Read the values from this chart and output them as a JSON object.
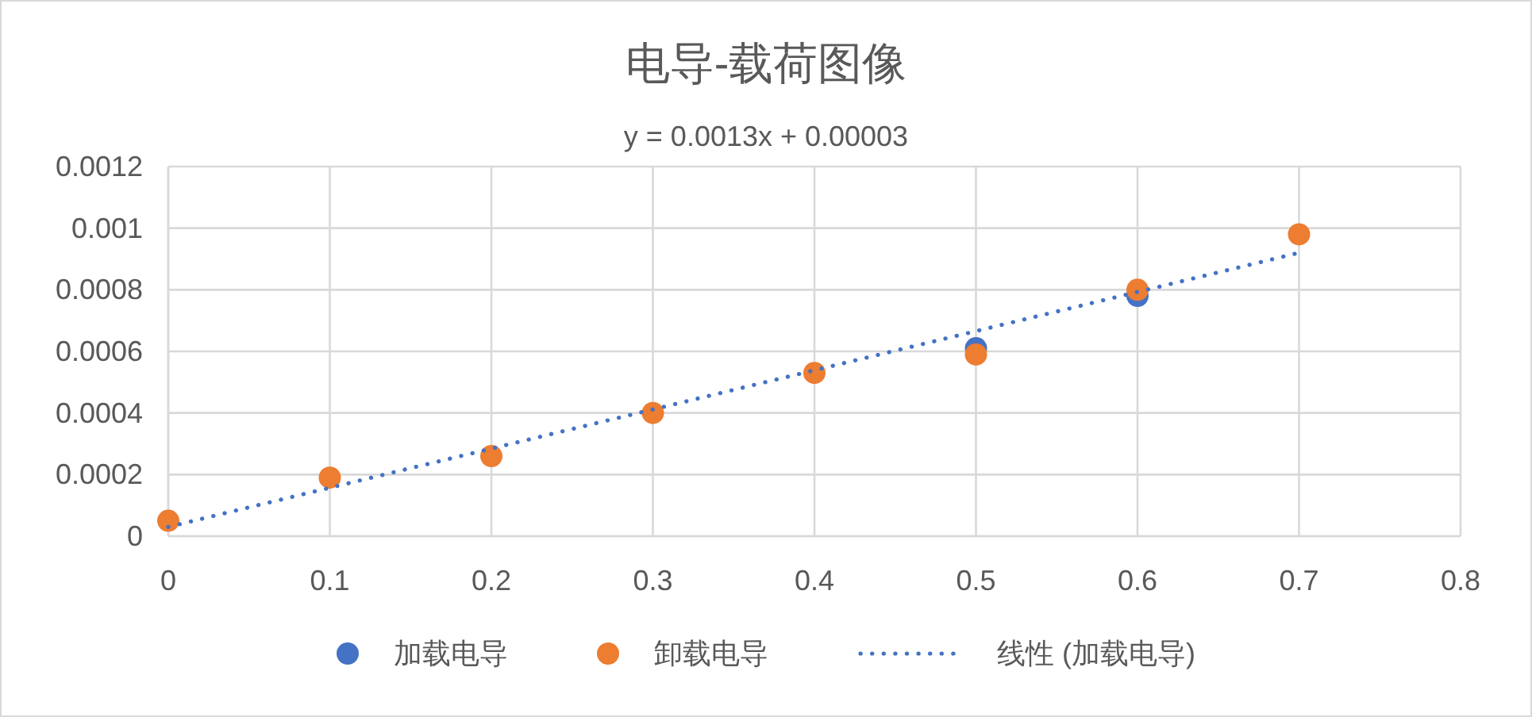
{
  "chart_data": {
    "type": "scatter",
    "title": "电导-载荷图像",
    "subtitle": "y = 0.0013x + 0.00003",
    "x": [
      0,
      0.1,
      0.2,
      0.3,
      0.4,
      0.5,
      0.6,
      0.7
    ],
    "series": [
      {
        "name": "加载电导",
        "color": "#4472c4",
        "values": [
          null,
          null,
          null,
          null,
          null,
          0.00061,
          0.00078,
          null
        ]
      },
      {
        "name": "卸载电导",
        "color": "#ed7d31",
        "values": [
          5e-05,
          0.00019,
          0.00026,
          0.0004,
          0.00053,
          0.00059,
          0.0008,
          0.00098
        ]
      },
      {
        "name": "线性 (加载电导)",
        "type": "line",
        "color": "#4472c4",
        "x": [
          0,
          0.7
        ],
        "values": [
          3e-05,
          0.00092
        ],
        "line_style": "dotted",
        "marker": "none"
      }
    ],
    "xlim": [
      0,
      0.8
    ],
    "xticks": [
      0,
      0.1,
      0.2,
      0.3,
      0.4,
      0.5,
      0.6,
      0.7,
      0.8
    ],
    "ylim": [
      0,
      0.0012
    ],
    "yticks": [
      0,
      0.0002,
      0.0004,
      0.0006,
      0.0008,
      0.001,
      0.0012
    ],
    "grid": true,
    "legend": "bottom",
    "marker": "circle"
  }
}
